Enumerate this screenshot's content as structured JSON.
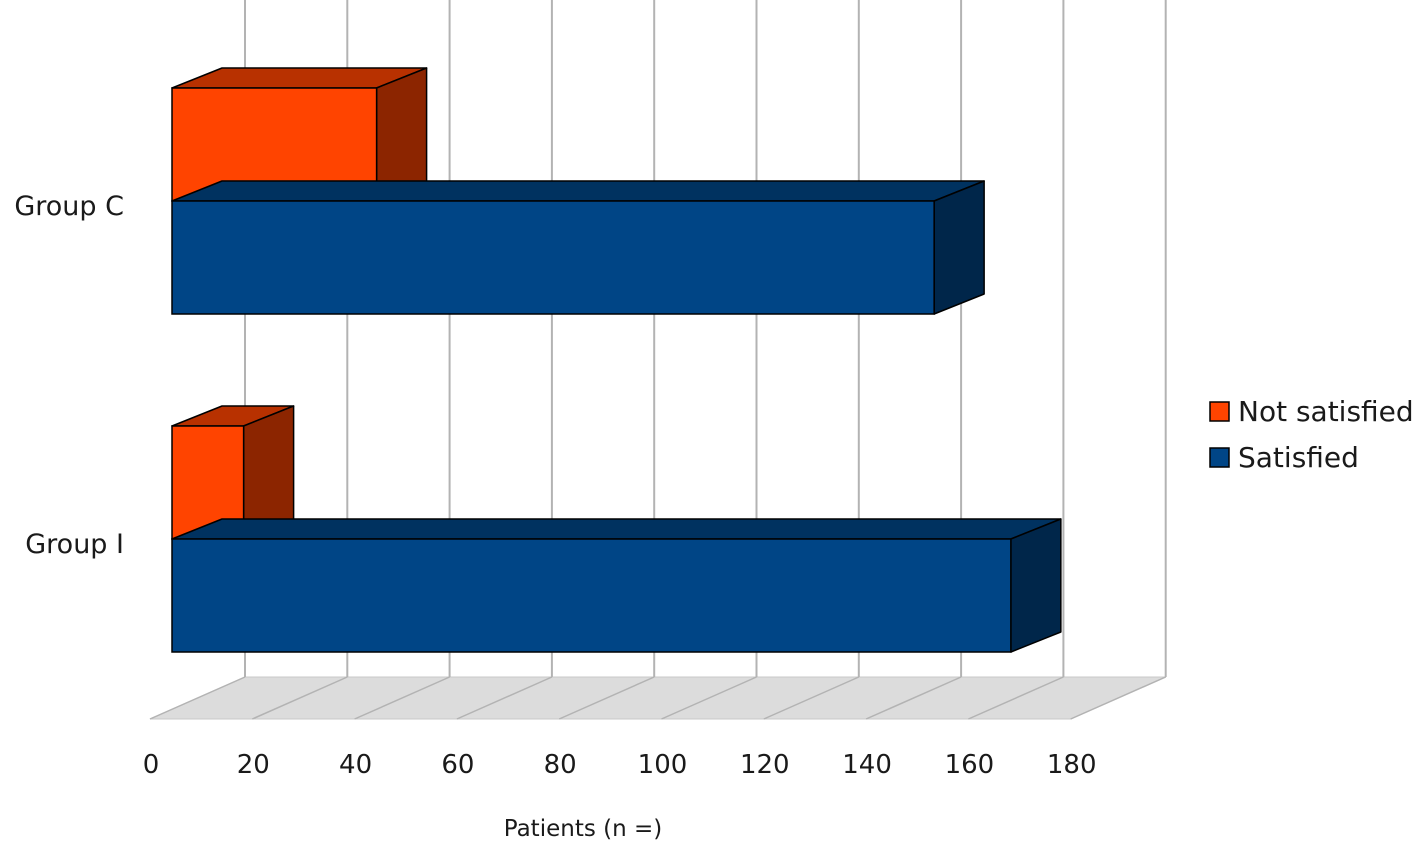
{
  "chart_data": {
    "type": "bar",
    "orientation": "horizontal",
    "style": "3d",
    "title": "",
    "xlabel": "Patients (n =)",
    "ylabel": "",
    "xlim": [
      0,
      180
    ],
    "xticks": [
      "0",
      "20",
      "40",
      "60",
      "80",
      "100",
      "120",
      "140",
      "160",
      "180"
    ],
    "categories": [
      "Group C",
      "Group I"
    ],
    "series": [
      {
        "name": "Not satisfied",
        "values": [
          40,
          14
        ],
        "color": "#ff4400"
      },
      {
        "name": "Satisfied",
        "values": [
          149,
          164
        ],
        "color": "#004586"
      }
    ],
    "grid": true,
    "legend": "right"
  }
}
